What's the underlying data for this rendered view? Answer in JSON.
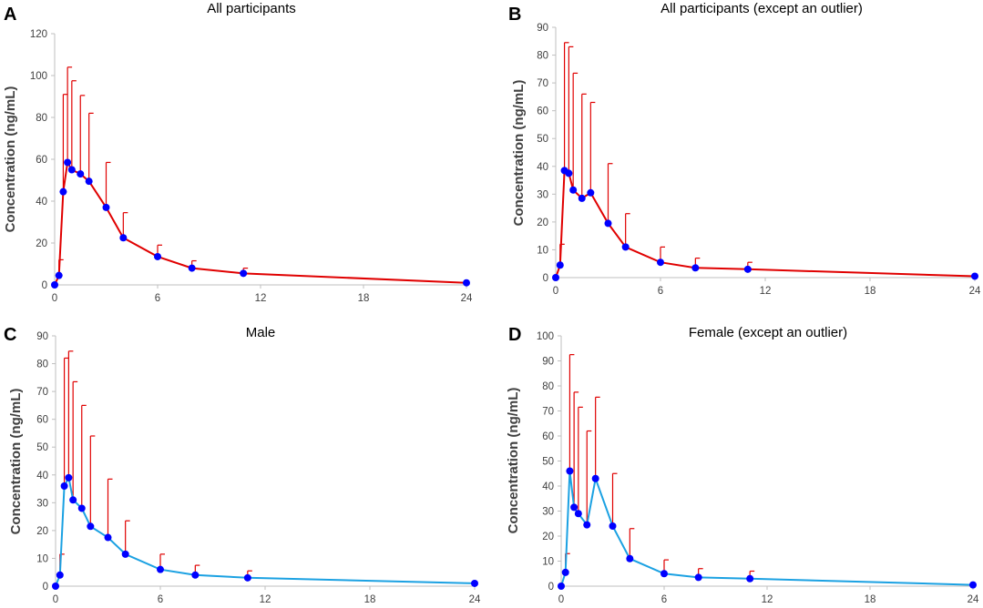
{
  "chart_data": [
    {
      "type": "line",
      "panel_label": "A",
      "title": "All participants",
      "ylabel": "Concentration (ng/mL)",
      "xlabel": "",
      "x_ticks": [
        0,
        6,
        12,
        18,
        24
      ],
      "xlim": [
        0,
        24
      ],
      "y_ticks": [
        0,
        20,
        40,
        60,
        80,
        100,
        120
      ],
      "ylim": [
        0,
        120
      ],
      "line_color": "#e00000",
      "marker_color": "#0000ff",
      "errorbar_color": "#e00000",
      "x": [
        0,
        0.25,
        0.5,
        0.75,
        1,
        1.5,
        2,
        3,
        4,
        6,
        8,
        11,
        24
      ],
      "y": [
        0,
        4.5,
        44.5,
        58.5,
        55,
        53,
        49.5,
        37,
        22.5,
        13.5,
        8,
        5.5,
        1
      ],
      "error_upper": [
        0,
        12,
        91,
        104,
        97.5,
        90.5,
        82,
        58.5,
        34.5,
        19,
        11.5,
        8,
        0
      ]
    },
    {
      "type": "line",
      "panel_label": "B",
      "title": "All participants (except an outlier)",
      "ylabel": "Concentration (ng/mL)",
      "xlabel": "",
      "x_ticks": [
        0,
        6,
        12,
        18,
        24
      ],
      "xlim": [
        0,
        24
      ],
      "y_ticks": [
        0,
        10,
        20,
        30,
        40,
        50,
        60,
        70,
        80,
        90
      ],
      "ylim": [
        0,
        90
      ],
      "line_color": "#e00000",
      "marker_color": "#0000ff",
      "errorbar_color": "#e00000",
      "x": [
        0,
        0.25,
        0.5,
        0.75,
        1,
        1.5,
        2,
        3,
        4,
        6,
        8,
        11,
        24
      ],
      "y": [
        0,
        4.5,
        38.5,
        37.5,
        31.5,
        28.5,
        30.5,
        19.5,
        11,
        5.5,
        3.5,
        3,
        0.5
      ],
      "error_upper": [
        0,
        12,
        84.5,
        83,
        73.5,
        66,
        63,
        41,
        23,
        11,
        7,
        5.5,
        0
      ]
    },
    {
      "type": "line",
      "panel_label": "C",
      "title": "Male",
      "ylabel": "Concentration (ng/mL)",
      "xlabel": "",
      "x_ticks": [
        0,
        6,
        12,
        18,
        24
      ],
      "xlim": [
        0,
        24
      ],
      "y_ticks": [
        0,
        10,
        20,
        30,
        40,
        50,
        60,
        70,
        80,
        90
      ],
      "ylim": [
        0,
        90
      ],
      "line_color": "#1ba1e2",
      "marker_color": "#0000ff",
      "errorbar_color": "#e00000",
      "x": [
        0,
        0.25,
        0.5,
        0.75,
        1,
        1.5,
        2,
        3,
        4,
        6,
        8,
        11,
        24
      ],
      "y": [
        0,
        4,
        36,
        39,
        31,
        28,
        21.5,
        17.5,
        11.5,
        6,
        4,
        3,
        1
      ],
      "error_upper": [
        0,
        11.5,
        82,
        84.5,
        73.5,
        65,
        54,
        38.5,
        23.5,
        11.5,
        7.5,
        5.5,
        0
      ]
    },
    {
      "type": "line",
      "panel_label": "D",
      "title": "Female (except an outlier)",
      "ylabel": "Concentration (ng/mL)",
      "xlabel": "",
      "x_ticks": [
        0,
        6,
        12,
        18,
        24
      ],
      "xlim": [
        0,
        24
      ],
      "y_ticks": [
        0,
        10,
        20,
        30,
        40,
        50,
        60,
        70,
        80,
        90,
        100
      ],
      "ylim": [
        0,
        100
      ],
      "line_color": "#1ba1e2",
      "marker_color": "#0000ff",
      "errorbar_color": "#e00000",
      "x": [
        0,
        0.25,
        0.5,
        0.75,
        1,
        1.5,
        2,
        3,
        4,
        6,
        8,
        11,
        24
      ],
      "y": [
        0,
        5.5,
        46,
        31.5,
        29,
        24.5,
        43,
        24,
        11,
        5,
        3.5,
        3,
        0.5
      ],
      "error_upper": [
        0,
        13,
        92.5,
        77.5,
        71.5,
        62,
        75.5,
        45,
        23,
        10.5,
        7,
        6,
        0
      ]
    }
  ]
}
